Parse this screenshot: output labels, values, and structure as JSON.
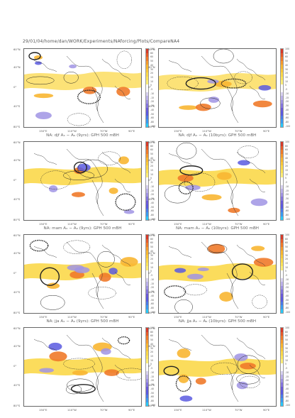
{
  "header": "29/01/04/home/dan/WORK/Experiments/NAforcing/Plots/CompareNA4",
  "lat_labels": [
    "60°N",
    "40°N",
    "0°",
    "40°S",
    "80°S"
  ],
  "lon_labels": [
    "150°E",
    "110°W",
    "70°W",
    "90°E"
  ],
  "colorbar": {
    "labels": [
      "100",
      "80",
      "60",
      "50",
      "40",
      "30",
      "20",
      "15",
      "10",
      "5",
      "-5",
      "-10",
      "-15",
      "-20",
      "-30",
      "-40",
      "-50",
      "-60",
      "-80",
      "-100"
    ],
    "colors": [
      "#d63a2a",
      "#e65a2a",
      "#f07a2a",
      "#f59a2e",
      "#f8b632",
      "#fac83a",
      "#fbd84a",
      "#fce45a",
      "#fdee7a",
      "#ffffff",
      "#ffffff",
      "#d8d2f0",
      "#bcb2ea",
      "#a094e4",
      "#8476de",
      "#6a5ad8",
      "#5a5ae0",
      "#4a7ae8",
      "#3a9af0",
      "#2ac8f8"
    ]
  },
  "panels": [
    {
      "id": "djf-9",
      "caption": "NA: djf Aₓ − Aₒ (9yrs): GPH 500 mBH"
    },
    {
      "id": "djf-10",
      "caption": "NA: djf Aₓ − Aₒ (10byrs): GPH 500 mBH"
    },
    {
      "id": "mam-9",
      "caption": "NA: mam Aₓ − Aₒ (9yrs): GPH 500 mBH"
    },
    {
      "id": "mam-10",
      "caption": "NA: mam Aₓ − Aₒ (10byrs): GPH 500 mBH"
    },
    {
      "id": "jja-9",
      "caption": "NA: jja Aₓ − Aₒ (9yrs): GPH 500 mBH"
    },
    {
      "id": "jja-10",
      "caption": "NA: jja Aₓ − Aₒ (10byrs): GPH 500 mBH"
    },
    {
      "id": "son-9",
      "caption": ""
    },
    {
      "id": "son-10",
      "caption": ""
    }
  ]
}
